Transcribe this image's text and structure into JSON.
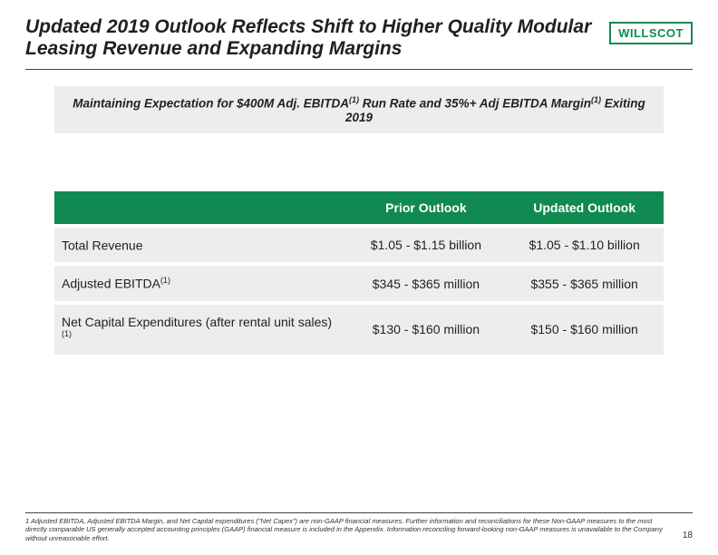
{
  "header": {
    "title": "Updated 2019 Outlook Reflects Shift to Higher Quality Modular Leasing Revenue and Expanding Margins",
    "logo_text": "WILLSCOT"
  },
  "banner": {
    "pre": "Maintaining Expectation for $400M Adj. EBITDA",
    "sup1": "(1)",
    "mid": " Run Rate and 35%+ Adj EBITDA Margin",
    "sup2": "(1)",
    "post": " Exiting 2019"
  },
  "table": {
    "columns": [
      "",
      "Prior Outlook",
      "Updated Outlook"
    ],
    "rows": [
      {
        "metric": "Total Revenue",
        "sup": "",
        "prior": "$1.05 - $1.15 billion",
        "updated": "$1.05 - $1.10 billion"
      },
      {
        "metric": "Adjusted EBITDA",
        "sup": "(1)",
        "prior": "$345 - $365 million",
        "updated": "$355 - $365 million"
      },
      {
        "metric": "Net Capital Expenditures (after rental unit sales)",
        "sup": "(1)",
        "prior": "$130 - $160 million",
        "updated": "$150 - $160 million"
      }
    ]
  },
  "footer": {
    "note": "1 Adjusted EBITDA, Adjusted EBITDA Margin, and Net Capital expenditures (\"Net Capex\") are non-GAAP financial measures. Further information and reconciliations for these Non-GAAP measures to the most directly comparable US generally accepted accounting principles (GAAP) financial measure is included in the Appendix. Information reconciling forward-looking non-GAAP measures is unavailable to the Company without unreasonable effort.",
    "page": "18"
  },
  "colors": {
    "accent_green": "#108a50",
    "row_bg": "#ededed",
    "text": "#222222",
    "divider": "#444444"
  }
}
